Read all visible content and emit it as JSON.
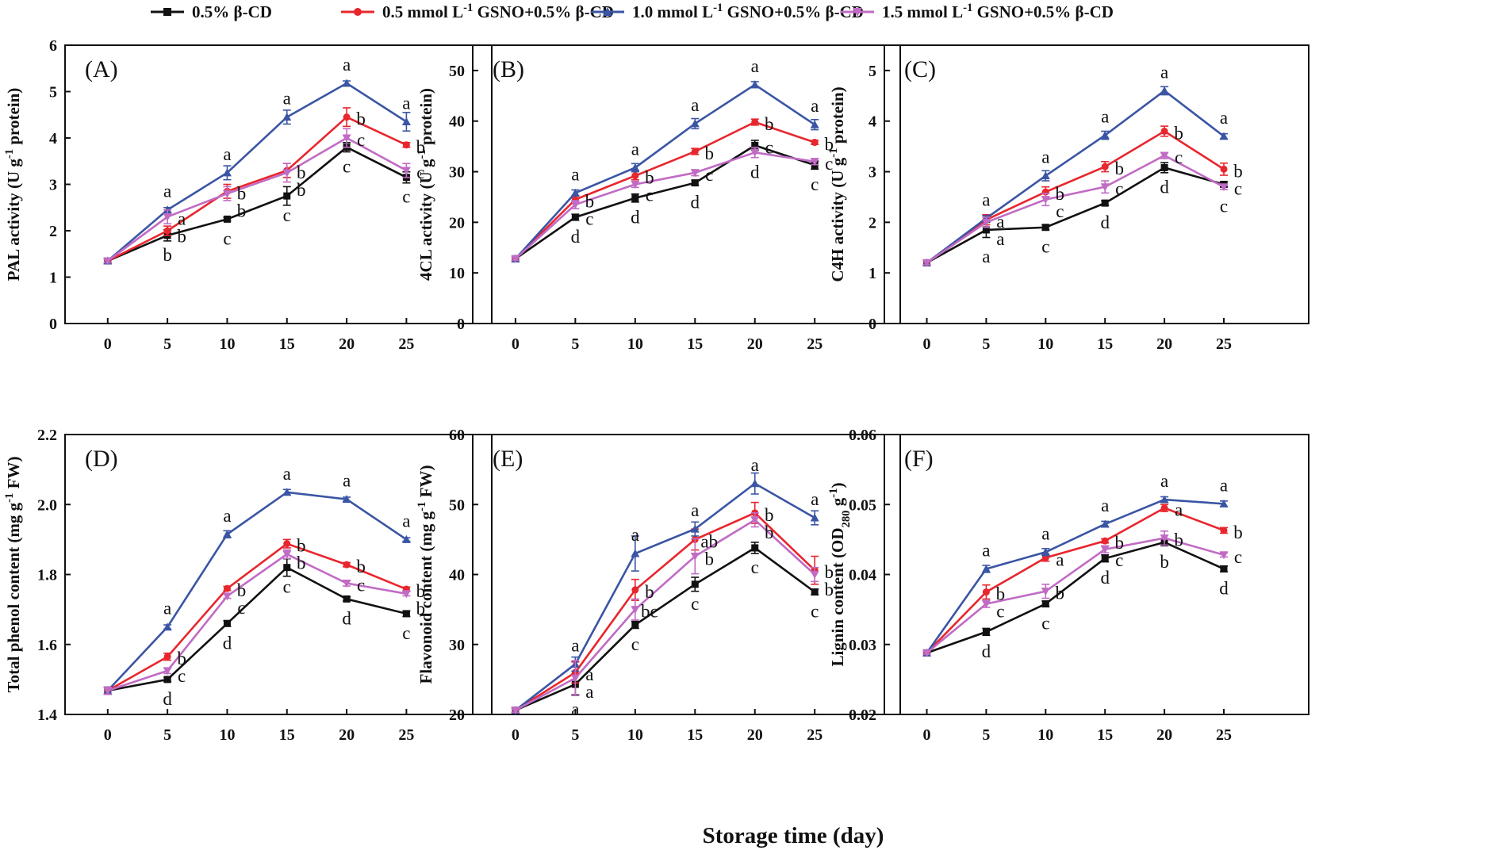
{
  "figure": {
    "x_axis_title": "Storage time (day)",
    "legend": [
      {
        "name": "0.5% β-CD",
        "color": "#111111",
        "marker": "square"
      },
      {
        "name": "0.5 mmol L-1 GSNO+0.5% β-CD",
        "color": "#e8262d",
        "marker": "circle"
      },
      {
        "name": "1.0 mmol L-1 GSNO+0.5% β-CD",
        "color": "#3a55a4",
        "marker": "triangle-up"
      },
      {
        "name": "1.5 mmol L-1 GSNO+0.5% β-CD",
        "color": "#c16bc4",
        "marker": "triangle-down"
      }
    ]
  },
  "chart_data": [
    {
      "type": "line",
      "panel_label": "(A)",
      "ylabel": "PAL activity (U g-1 protein)",
      "x": [
        0,
        5,
        10,
        15,
        20,
        25
      ],
      "ylim": [
        0,
        6
      ],
      "yticks": [
        "0",
        "1",
        "2",
        "3",
        "4",
        "5",
        "6"
      ],
      "xticks": [
        "0",
        "5",
        "10",
        "15",
        "20",
        "25"
      ],
      "series": [
        {
          "name": "0.5% β-CD",
          "values": [
            1.35,
            1.9,
            2.25,
            2.75,
            3.8,
            3.15
          ],
          "errors": [
            0.04,
            0.12,
            0.04,
            0.2,
            0.1,
            0.12
          ],
          "letters": [
            "",
            "b",
            "c",
            "c",
            "c",
            "c"
          ]
        },
        {
          "name": "0.5 mmol L-1 GSNO+0.5% β-CD",
          "values": [
            1.35,
            2.0,
            2.85,
            3.3,
            4.45,
            3.85
          ],
          "errors": [
            0.04,
            0.1,
            0.15,
            0.15,
            0.2,
            0.05
          ],
          "letters": [
            "",
            "b",
            "b",
            "b",
            "b",
            "b"
          ]
        },
        {
          "name": "1.0 mmol L-1 GSNO+0.5% β-CD",
          "values": [
            1.35,
            2.45,
            3.25,
            4.45,
            5.18,
            4.35
          ],
          "errors": [
            0.04,
            0.05,
            0.15,
            0.15,
            0.05,
            0.2
          ],
          "letters": [
            "",
            "a",
            "a",
            "a",
            "a",
            "a"
          ]
        },
        {
          "name": "1.5 mmol L-1 GSNO+0.5% β-CD",
          "values": [
            1.35,
            2.3,
            2.8,
            3.25,
            4.0,
            3.3
          ],
          "errors": [
            0.04,
            0.15,
            0.15,
            0.2,
            0.2,
            0.15
          ],
          "letters": [
            "",
            "a",
            "b",
            "b",
            "c",
            "c"
          ]
        }
      ]
    },
    {
      "type": "line",
      "panel_label": "(B)",
      "ylabel": "4CL activity (U g-1 protein)",
      "x": [
        0,
        5,
        10,
        15,
        20,
        25
      ],
      "ylim": [
        0,
        55
      ],
      "yticks": [
        "0",
        "10",
        "20",
        "30",
        "40",
        "50"
      ],
      "xticks": [
        "0",
        "5",
        "10",
        "15",
        "20",
        "25"
      ],
      "series": [
        {
          "name": "0.5% β-CD",
          "values": [
            12.8,
            21.0,
            24.8,
            27.8,
            35.2,
            31.3
          ],
          "errors": [
            0.3,
            0.6,
            0.8,
            0.5,
            1.0,
            0.8
          ],
          "letters": [
            "",
            "d",
            "d",
            "d",
            "c",
            "c"
          ]
        },
        {
          "name": "0.5 mmol L-1 GSNO+0.5% β-CD",
          "values": [
            12.8,
            24.5,
            29.2,
            34.0,
            39.8,
            35.8
          ],
          "errors": [
            0.3,
            0.8,
            0.8,
            0.6,
            0.6,
            0.4
          ],
          "letters": [
            "",
            "b",
            "b",
            "b",
            "b",
            "b"
          ]
        },
        {
          "name": "1.0 mmol L-1 GSNO+0.5% β-CD",
          "values": [
            12.8,
            25.8,
            30.8,
            39.5,
            47.2,
            39.3
          ],
          "errors": [
            0.3,
            0.6,
            0.8,
            1.0,
            0.6,
            1.0
          ],
          "letters": [
            "",
            "a",
            "a",
            "a",
            "a",
            "a"
          ]
        },
        {
          "name": "1.5 mmol L-1 GSNO+0.5% β-CD",
          "values": [
            12.8,
            23.5,
            27.5,
            29.8,
            33.8,
            32.0
          ],
          "errors": [
            0.3,
            0.8,
            0.6,
            0.6,
            1.0,
            0.6
          ],
          "letters": [
            "",
            "c",
            "c",
            "c",
            "d",
            "c"
          ]
        }
      ]
    },
    {
      "type": "line",
      "panel_label": "(C)",
      "ylabel": "C4H activity (U g-1 protein)",
      "x": [
        0,
        5,
        10,
        15,
        20,
        25
      ],
      "ylim": [
        0,
        5.5
      ],
      "yticks": [
        "0",
        "1",
        "2",
        "3",
        "4",
        "5"
      ],
      "xticks": [
        "0",
        "5",
        "10",
        "15",
        "20",
        "25"
      ],
      "series": [
        {
          "name": "0.5% β-CD",
          "values": [
            1.2,
            1.85,
            1.9,
            2.38,
            3.08,
            2.75
          ],
          "errors": [
            0.04,
            0.15,
            0.05,
            0.05,
            0.1,
            0.05
          ],
          "letters": [
            "",
            "a",
            "c",
            "d",
            "d",
            "c"
          ]
        },
        {
          "name": "0.5 mmol L-1 GSNO+0.5% β-CD",
          "values": [
            1.2,
            2.05,
            2.6,
            3.1,
            3.8,
            3.05
          ],
          "errors": [
            0.04,
            0.1,
            0.1,
            0.1,
            0.1,
            0.12
          ],
          "letters": [
            "",
            "a",
            "b",
            "b",
            "b",
            "b"
          ]
        },
        {
          "name": "1.0 mmol L-1 GSNO+0.5% β-CD",
          "values": [
            1.2,
            2.08,
            2.92,
            3.72,
            4.6,
            3.7
          ],
          "errors": [
            0.04,
            0.05,
            0.1,
            0.08,
            0.08,
            0.05
          ],
          "letters": [
            "",
            "a",
            "a",
            "a",
            "a",
            "a"
          ]
        },
        {
          "name": "1.5 mmol L-1 GSNO+0.5% β-CD",
          "values": [
            1.2,
            2.0,
            2.45,
            2.7,
            3.32,
            2.7
          ],
          "errors": [
            0.04,
            0.1,
            0.12,
            0.12,
            0.06,
            0.05
          ],
          "letters": [
            "",
            "a",
            "c",
            "c",
            "c",
            "c"
          ]
        }
      ]
    },
    {
      "type": "line",
      "panel_label": "(D)",
      "ylabel": "Total phenol content (mg g-1 FW)",
      "x": [
        0,
        5,
        10,
        15,
        20,
        25
      ],
      "ylim": [
        1.4,
        2.2
      ],
      "yticks": [
        "1.4",
        "1.6",
        "1.8",
        "2.0",
        "2.2"
      ],
      "xticks": [
        "0",
        "5",
        "10",
        "15",
        "20",
        "25"
      ],
      "series": [
        {
          "name": "0.5% β-CD",
          "values": [
            1.468,
            1.5,
            1.66,
            1.82,
            1.73,
            1.688
          ],
          "errors": [
            0.01,
            0.006,
            0.008,
            0.025,
            0.006,
            0.008
          ],
          "letters": [
            "",
            "d",
            "d",
            "c",
            "d",
            "c"
          ]
        },
        {
          "name": "0.5 mmol L-1 GSNO+0.5% β-CD",
          "values": [
            1.468,
            1.565,
            1.76,
            1.888,
            1.828,
            1.758
          ],
          "errors": [
            0.01,
            0.01,
            0.006,
            0.012,
            0.006,
            0.006
          ],
          "letters": [
            "",
            "b",
            "b",
            "b",
            "b",
            "b"
          ]
        },
        {
          "name": "1.0 mmol L-1 GSNO+0.5% β-CD",
          "values": [
            1.468,
            1.65,
            1.915,
            2.035,
            2.015,
            1.9
          ],
          "errors": [
            0.01,
            0.006,
            0.01,
            0.008,
            0.006,
            0.005
          ],
          "letters": [
            "",
            "a",
            "a",
            "a",
            "a",
            "a"
          ]
        },
        {
          "name": "1.5 mmol L-1 GSNO+0.5% β-CD",
          "values": [
            1.468,
            1.525,
            1.738,
            1.858,
            1.775,
            1.745
          ],
          "errors": [
            0.01,
            0.008,
            0.006,
            0.012,
            0.008,
            0.006
          ],
          "letters": [
            "",
            "c",
            "c",
            "b",
            "c",
            "b"
          ]
        }
      ]
    },
    {
      "type": "line",
      "panel_label": "(E)",
      "ylabel": "Flavonoid content (mg g-1 FW)",
      "x": [
        0,
        5,
        10,
        15,
        20,
        25
      ],
      "ylim": [
        20,
        60
      ],
      "yticks": [
        "20",
        "30",
        "40",
        "50",
        "60"
      ],
      "xticks": [
        "0",
        "5",
        "10",
        "15",
        "20",
        "25"
      ],
      "series": [
        {
          "name": "0.5% β-CD",
          "values": [
            20.6,
            24.3,
            32.8,
            38.6,
            43.8,
            37.5
          ],
          "errors": [
            0.3,
            1.5,
            0.5,
            1.0,
            0.8,
            0.4
          ],
          "letters": [
            "",
            "a",
            "c",
            "c",
            "c",
            "c"
          ]
        },
        {
          "name": "0.5 mmol L-1 GSNO+0.5% β-CD",
          "values": [
            20.6,
            26.0,
            37.8,
            45.0,
            48.8,
            40.6
          ],
          "errors": [
            0.3,
            1.5,
            1.5,
            1.5,
            1.5,
            2.0
          ],
          "letters": [
            "",
            "a",
            "b",
            "ab",
            "b",
            "b"
          ]
        },
        {
          "name": "1.0 mmol L-1 GSNO+0.5% β-CD",
          "values": [
            20.6,
            27.2,
            43.0,
            46.5,
            53.0,
            48.1
          ],
          "errors": [
            0.3,
            1.0,
            2.5,
            1.0,
            1.5,
            1.0
          ],
          "letters": [
            "",
            "a",
            "a",
            "a",
            "a",
            "a"
          ]
        },
        {
          "name": "1.5 mmol L-1 GSNO+0.5% β-CD",
          "values": [
            20.6,
            25.2,
            35.0,
            42.6,
            47.8,
            40.0
          ],
          "errors": [
            0.3,
            2.5,
            1.5,
            2.5,
            1.0,
            1.0
          ],
          "letters": [
            "",
            "a",
            "bc",
            "b",
            "b",
            "b"
          ]
        }
      ]
    },
    {
      "type": "line",
      "panel_label": "(F)",
      "ylabel": "Lignin content (OD280 g-1)",
      "x": [
        0,
        5,
        10,
        15,
        20,
        25
      ],
      "ylim": [
        0.02,
        0.06
      ],
      "yticks": [
        "0.02",
        "0.03",
        "0.04",
        "0.05",
        "0.06"
      ],
      "xticks": [
        "0",
        "5",
        "10",
        "15",
        "20",
        "25"
      ],
      "series": [
        {
          "name": "0.5% β-CD",
          "values": [
            0.0288,
            0.0318,
            0.0358,
            0.0423,
            0.0446,
            0.0408
          ],
          "errors": [
            0.0002,
            0.0005,
            0.0004,
            0.0005,
            0.0005,
            0.0004
          ],
          "letters": [
            "",
            "d",
            "c",
            "d",
            "b",
            "d"
          ]
        },
        {
          "name": "0.5 mmol L-1 GSNO+0.5% β-CD",
          "values": [
            0.0288,
            0.0375,
            0.0424,
            0.0448,
            0.0495,
            0.0463
          ],
          "errors": [
            0.0002,
            0.001,
            0.0005,
            0.0003,
            0.0005,
            0.0004
          ],
          "letters": [
            "",
            "b",
            "a",
            "b",
            "a",
            "b"
          ]
        },
        {
          "name": "1.0 mmol L-1 GSNO+0.5% β-CD",
          "values": [
            0.0288,
            0.0408,
            0.0432,
            0.0472,
            0.0507,
            0.0501
          ],
          "errors": [
            0.0002,
            0.0005,
            0.0005,
            0.0004,
            0.0004,
            0.0004
          ],
          "letters": [
            "",
            "a",
            "a",
            "a",
            "a",
            "a"
          ]
        },
        {
          "name": "1.5 mmol L-1 GSNO+0.5% β-CD",
          "values": [
            0.0288,
            0.0358,
            0.0376,
            0.0436,
            0.0452,
            0.0428
          ],
          "errors": [
            0.0002,
            0.0005,
            0.001,
            0.0005,
            0.001,
            0.0003
          ],
          "letters": [
            "",
            "c",
            "b",
            "c",
            "b",
            "c"
          ]
        }
      ]
    }
  ]
}
